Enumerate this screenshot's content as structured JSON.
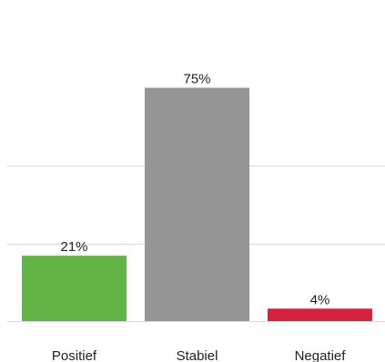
{
  "chart_data": {
    "type": "bar",
    "categories": [
      "Positief",
      "Stabiel",
      "Negatief"
    ],
    "values": [
      21,
      75,
      4
    ],
    "data_labels": [
      "21%",
      "75%",
      "4%"
    ],
    "colors": [
      "#62b446",
      "#959595",
      "#d4213d"
    ],
    "title": "",
    "xlabel": "",
    "ylabel": "",
    "ylim": [
      0,
      80
    ],
    "grid": true,
    "legend": "none"
  }
}
